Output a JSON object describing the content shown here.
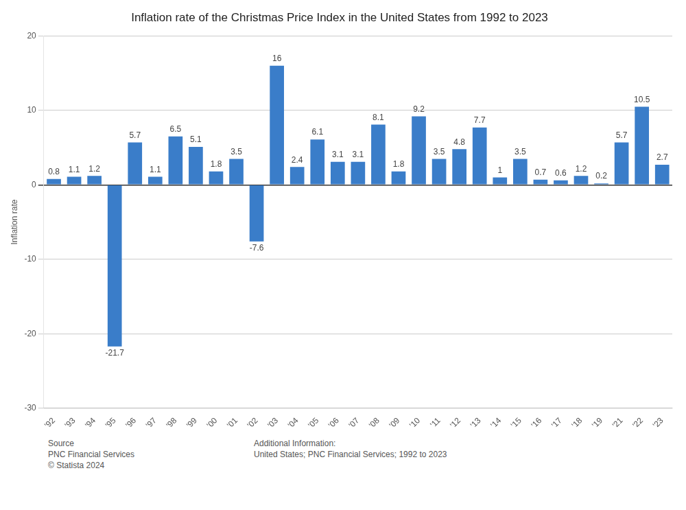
{
  "chart_data": {
    "type": "bar",
    "title": "Inflation rate of the Christmas Price Index in the United States from 1992 to 2023",
    "ylabel": "Inflation rate",
    "categories": [
      "'92",
      "'93",
      "'94",
      "'95",
      "'96",
      "'97",
      "'98",
      "'99",
      "'00",
      "'01",
      "'02",
      "'03",
      "'04",
      "'05",
      "'06",
      "'07",
      "'08",
      "'09",
      "'10",
      "'11",
      "'12",
      "'13",
      "'14",
      "'15",
      "'16",
      "'17",
      "'18",
      "'19",
      "'21",
      "'22",
      "'23"
    ],
    "values": [
      0.8,
      1.1,
      1.2,
      -21.7,
      5.7,
      1.1,
      6.5,
      5.1,
      1.8,
      3.5,
      -7.6,
      16.0,
      2.4,
      6.1,
      3.1,
      3.1,
      8.1,
      1.8,
      9.2,
      3.5,
      4.8,
      7.7,
      1.0,
      3.5,
      0.7,
      0.6,
      1.2,
      0.2,
      5.7,
      10.5,
      2.7
    ],
    "color": "#3a7dc9",
    "ylim": [
      -30,
      20
    ],
    "yticks": [
      -30,
      -20,
      -10,
      0,
      10,
      20
    ],
    "grid": true,
    "data_labels": true,
    "annotations": [
      "Source\nPNC Financial Services\n© Statista 2024",
      "Additional Information:\nUnited States; PNC Financial Services; 1992 to 2023"
    ]
  }
}
